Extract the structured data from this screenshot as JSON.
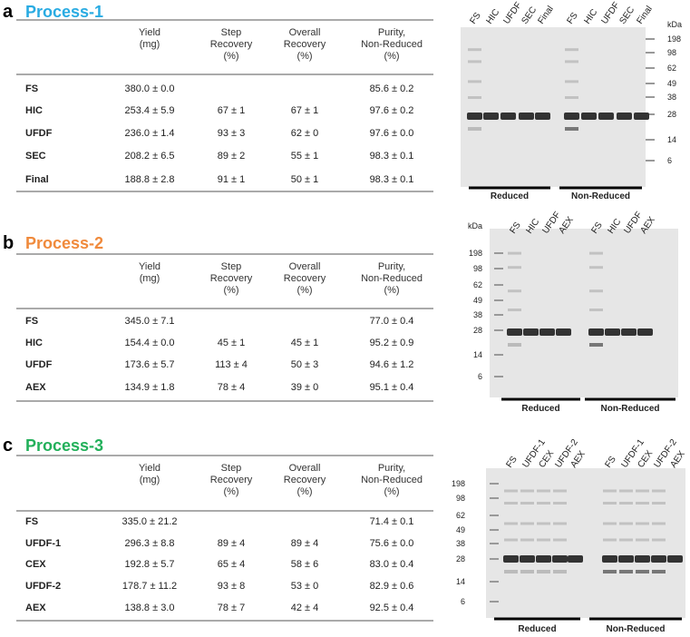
{
  "panels": [
    {
      "letter": "a",
      "title": "Process-1",
      "table": {
        "headers": [
          [
            "Yield",
            "(mg)"
          ],
          [
            "Step",
            "Recovery",
            "(%)"
          ],
          [
            "Overall",
            "Recovery",
            "(%)"
          ],
          [
            "Purity,",
            "Non-Reduced",
            "(%)"
          ]
        ],
        "rows": [
          {
            "label": "FS",
            "yield": "380.0 ± 0.0",
            "purity": "85.6 ± 0.2"
          },
          {
            "label": "HIC",
            "yield": "253.4 ± 5.9",
            "step": "67 ± 1",
            "overall": "67 ± 1",
            "purity": "97.6 ± 0.2"
          },
          {
            "label": "UFDF",
            "yield": "236.0 ± 1.4",
            "step": "93 ± 3",
            "overall": "62 ± 0",
            "purity": "97.6 ± 0.0"
          },
          {
            "label": "SEC",
            "yield": "208.2 ± 6.5",
            "step": "89 ± 2",
            "overall": "55 ± 1",
            "purity": "98.3 ± 0.1"
          },
          {
            "label": "Final",
            "yield": "188.8 ± 2.8",
            "step": "91 ± 1",
            "overall": "50 ± 1",
            "purity": "98.3 ± 0.1"
          }
        ]
      },
      "gel": {
        "kda_label": "kDa",
        "markers": [
          "198",
          "98",
          "62",
          "49",
          "38",
          "28",
          "14",
          "6"
        ],
        "lanes_reduced": [
          "FS",
          "HIC",
          "UFDF",
          "SEC",
          "Final"
        ],
        "lanes_non_reduced": [
          "FS",
          "HIC",
          "UFDF",
          "SEC",
          "Final"
        ],
        "reduced_label": "Reduced",
        "non_reduced_label": "Non-Reduced"
      }
    },
    {
      "letter": "b",
      "title": "Process-2",
      "table": {
        "headers": [
          [
            "Yield",
            "(mg)"
          ],
          [
            "Step",
            "Recovery",
            "(%)"
          ],
          [
            "Overall",
            "Recovery",
            "(%)"
          ],
          [
            "Purity,",
            "Non-Reduced",
            "(%)"
          ]
        ],
        "rows": [
          {
            "label": "FS",
            "yield": "345.0 ± 7.1",
            "purity": "77.0 ± 0.4"
          },
          {
            "label": "HIC",
            "yield": "154.4 ± 0.0",
            "step": "45 ± 1",
            "overall": "45 ± 1",
            "purity": "95.2 ± 0.9"
          },
          {
            "label": "UFDF",
            "yield": "173.6 ± 5.7",
            "step": "113 ± 4",
            "overall": "50 ± 3",
            "purity": "94.6 ± 1.2"
          },
          {
            "label": "AEX",
            "yield": "134.9 ± 1.8",
            "step": "78 ± 4",
            "overall": "39 ± 0",
            "purity": "95.1 ± 0.4"
          }
        ]
      },
      "gel": {
        "kda_label": "kDa",
        "markers": [
          "198",
          "98",
          "62",
          "49",
          "38",
          "28",
          "14",
          "6"
        ],
        "lanes_reduced": [
          "FS",
          "HIC",
          "UFDF",
          "AEX"
        ],
        "lanes_non_reduced": [
          "FS",
          "HIC",
          "UFDF",
          "AEX"
        ],
        "reduced_label": "Reduced",
        "non_reduced_label": "Non-Reduced"
      }
    },
    {
      "letter": "c",
      "title": "Process-3",
      "table": {
        "headers": [
          [
            "Yield",
            "(mg)"
          ],
          [
            "Step",
            "Recovery",
            "(%)"
          ],
          [
            "Overall",
            "Recovery",
            "(%)"
          ],
          [
            "Purity,",
            "Non-Reduced",
            "(%)"
          ]
        ],
        "rows": [
          {
            "label": "FS",
            "yield": "335.0 ± 21.2",
            "purity": "71.4 ± 0.1"
          },
          {
            "label": "UFDF-1",
            "yield": "296.3 ± 8.8",
            "step": "89 ± 4",
            "overall": "89 ± 4",
            "purity": "75.6 ± 0.0"
          },
          {
            "label": "CEX",
            "yield": "192.8 ± 5.7",
            "step": "65 ± 4",
            "overall": "58 ± 6",
            "purity": "83.0 ± 0.4"
          },
          {
            "label": "UFDF-2",
            "yield": "178.7 ± 11.2",
            "step": "93 ± 8",
            "overall": "53 ± 0",
            "purity": "82.9 ± 0.6"
          },
          {
            "label": "AEX",
            "yield": "138.8 ± 3.0",
            "step": "78 ± 7",
            "overall": "42 ± 4",
            "purity": "92.5 ± 0.4"
          }
        ]
      },
      "gel": {
        "markers": [
          "198",
          "98",
          "62",
          "49",
          "38",
          "28",
          "14",
          "6"
        ],
        "lanes_reduced": [
          "FS",
          "UFDF-1",
          "CEX",
          "UFDF-2",
          "AEX"
        ],
        "lanes_non_reduced": [
          "FS",
          "UFDF-1",
          "CEX",
          "UFDF-2",
          "AEX"
        ],
        "reduced_label": "Reduced",
        "non_reduced_label": "Non-Reduced"
      }
    }
  ]
}
